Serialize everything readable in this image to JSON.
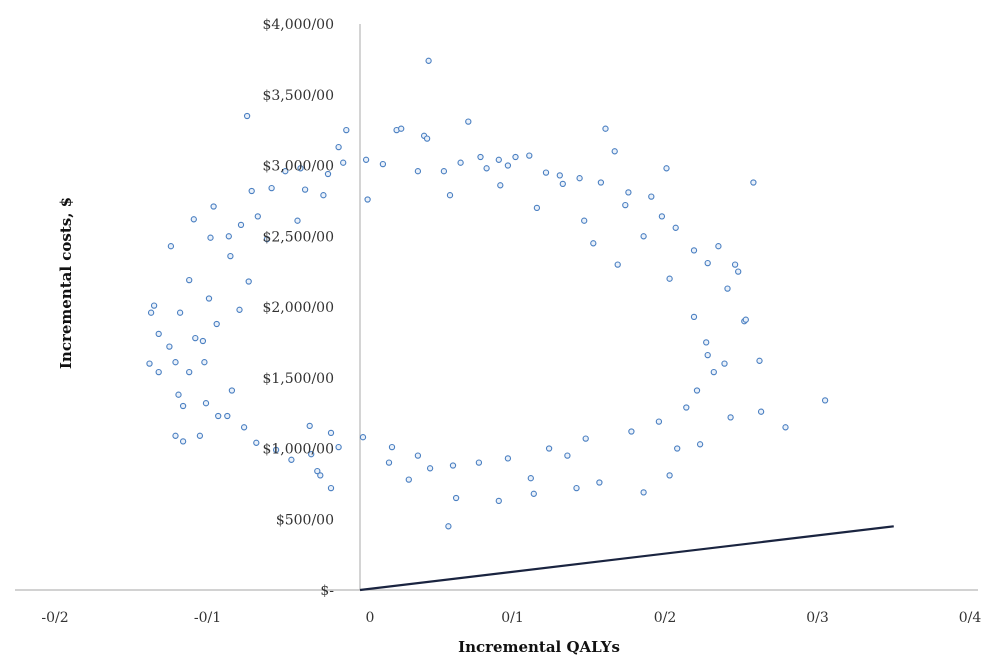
{
  "chart_data": {
    "type": "scatter",
    "xlabel": "Incremental QALYs",
    "ylabel": "Incremental costs, $",
    "xlim": [
      -0.2,
      0.4
    ],
    "ylim": [
      0,
      4000
    ],
    "x_ticks": [
      -0.2,
      -0.1,
      0,
      0.1,
      0.2,
      0.3,
      0.4
    ],
    "x_tick_labels": [
      "-0/2",
      "-0/1",
      "0",
      "0/1",
      "0/2",
      "0/3",
      "0/4"
    ],
    "y_ticks": [
      0,
      500,
      1000,
      1500,
      2000,
      2500,
      3000,
      3500,
      4000
    ],
    "y_tick_labels": [
      "$-",
      "$500/00",
      "$1,000/00",
      "$1,500/00",
      "$2,000/00",
      "$2,500/00",
      "$3,000/00",
      "$3,500/00",
      "$4,000/00"
    ],
    "grid": false,
    "legend": "none",
    "point_color": "#4a7fc1",
    "line_color": "#1a2440",
    "series": [
      {
        "points": [
          [
            0.045,
            3740
          ],
          [
            -0.074,
            3350
          ],
          [
            0.071,
            3310
          ],
          [
            0.161,
            3260
          ],
          [
            0.024,
            3250
          ],
          [
            0.027,
            3260
          ],
          [
            -0.009,
            3250
          ],
          [
            0.042,
            3210
          ],
          [
            0.044,
            3190
          ],
          [
            -0.014,
            3130
          ],
          [
            0.111,
            3070
          ],
          [
            0.102,
            3060
          ],
          [
            0.167,
            3100
          ],
          [
            0.258,
            2880
          ],
          [
            0.201,
            2980
          ],
          [
            -0.109,
            2620
          ],
          [
            -0.124,
            2430
          ],
          [
            -0.135,
            2010
          ],
          [
            -0.137,
            1960
          ],
          [
            -0.132,
            1810
          ],
          [
            -0.138,
            1600
          ],
          [
            -0.132,
            1540
          ],
          [
            -0.121,
            1610
          ],
          [
            -0.125,
            1720
          ],
          [
            -0.121,
            1090
          ],
          [
            -0.116,
            1050
          ],
          [
            -0.105,
            1090
          ],
          [
            -0.119,
            1380
          ],
          [
            -0.093,
            1230
          ],
          [
            -0.103,
            1760
          ],
          [
            -0.099,
            2060
          ],
          [
            -0.098,
            2490
          ],
          [
            -0.086,
            2500
          ],
          [
            -0.096,
            2710
          ],
          [
            -0.071,
            2820
          ],
          [
            -0.067,
            2640
          ],
          [
            -0.049,
            2960
          ],
          [
            -0.039,
            2980
          ],
          [
            -0.036,
            2830
          ],
          [
            -0.045,
            920
          ],
          [
            -0.032,
            960
          ],
          [
            -0.028,
            840
          ],
          [
            -0.026,
            810
          ],
          [
            -0.019,
            720
          ],
          [
            -0.014,
            1010
          ],
          [
            0.019,
            900
          ],
          [
            0.032,
            780
          ],
          [
            0.046,
            860
          ],
          [
            0.058,
            450
          ],
          [
            0.063,
            650
          ],
          [
            0.091,
            630
          ],
          [
            0.112,
            790
          ],
          [
            0.114,
            680
          ],
          [
            0.142,
            720
          ],
          [
            0.157,
            760
          ],
          [
            0.186,
            690
          ],
          [
            0.203,
            810
          ],
          [
            0.208,
            1000
          ],
          [
            0.223,
            1030
          ],
          [
            0.243,
            1220
          ],
          [
            0.263,
            1260
          ],
          [
            0.279,
            1150
          ],
          [
            0.305,
            1340
          ],
          [
            0.262,
            1620
          ],
          [
            0.252,
            1900
          ],
          [
            0.241,
            2130
          ],
          [
            0.248,
            2250
          ],
          [
            0.253,
            1910
          ],
          [
            0.246,
            2300
          ],
          [
            0.235,
            2430
          ],
          [
            0.228,
            2310
          ],
          [
            0.219,
            2400
          ],
          [
            0.207,
            2560
          ],
          [
            0.198,
            2640
          ],
          [
            0.191,
            2780
          ],
          [
            0.176,
            2810
          ],
          [
            0.158,
            2880
          ],
          [
            0.144,
            2910
          ],
          [
            0.131,
            2930
          ],
          [
            0.122,
            2950
          ],
          [
            0.097,
            3000
          ],
          [
            0.083,
            2980
          ],
          [
            0.066,
            3020
          ],
          [
            0.055,
            2960
          ],
          [
            0.038,
            2960
          ],
          [
            0.015,
            3010
          ],
          [
            0.004,
            3040
          ],
          [
            -0.011,
            3020
          ],
          [
            -0.021,
            2940
          ],
          [
            -0.058,
            2840
          ],
          [
            -0.078,
            2580
          ],
          [
            -0.085,
            2360
          ],
          [
            -0.112,
            2190
          ],
          [
            -0.118,
            1960
          ],
          [
            -0.108,
            1780
          ],
          [
            -0.112,
            1540
          ],
          [
            -0.116,
            1300
          ],
          [
            -0.101,
            1320
          ],
          [
            -0.087,
            1230
          ],
          [
            -0.076,
            1150
          ],
          [
            -0.068,
            1040
          ],
          [
            -0.055,
            990
          ],
          [
            0.232,
            1540
          ],
          [
            0.239,
            1600
          ],
          [
            0.227,
            1750
          ],
          [
            0.221,
            1410
          ],
          [
            0.214,
            1290
          ],
          [
            0.196,
            1190
          ],
          [
            0.178,
            1120
          ],
          [
            0.148,
            1070
          ],
          [
            0.136,
            950
          ],
          [
            0.124,
            1000
          ],
          [
            0.097,
            930
          ],
          [
            0.078,
            900
          ],
          [
            0.061,
            880
          ],
          [
            0.038,
            950
          ],
          [
            0.021,
            1010
          ],
          [
            0.002,
            1080
          ],
          [
            -0.019,
            1110
          ],
          [
            -0.033,
            1160
          ],
          [
            0.079,
            3060
          ],
          [
            0.091,
            3040
          ],
          [
            0.133,
            2870
          ],
          [
            0.174,
            2720
          ],
          [
            0.092,
            2860
          ],
          [
            -0.041,
            2610
          ],
          [
            -0.061,
            2480
          ],
          [
            -0.024,
            2790
          ],
          [
            0.147,
            2610
          ],
          [
            0.186,
            2500
          ],
          [
            0.203,
            2200
          ],
          [
            0.219,
            1930
          ],
          [
            0.228,
            1660
          ],
          [
            -0.094,
            1880
          ],
          [
            -0.102,
            1610
          ],
          [
            -0.084,
            1410
          ],
          [
            -0.079,
            1980
          ],
          [
            -0.073,
            2180
          ],
          [
            0.005,
            2760
          ],
          [
            0.059,
            2790
          ],
          [
            0.116,
            2700
          ],
          [
            0.153,
            2450
          ],
          [
            0.169,
            2300
          ]
        ]
      }
    ],
    "reference_line": {
      "from": [
        0,
        0
      ],
      "to": [
        0.35,
        450
      ]
    }
  }
}
